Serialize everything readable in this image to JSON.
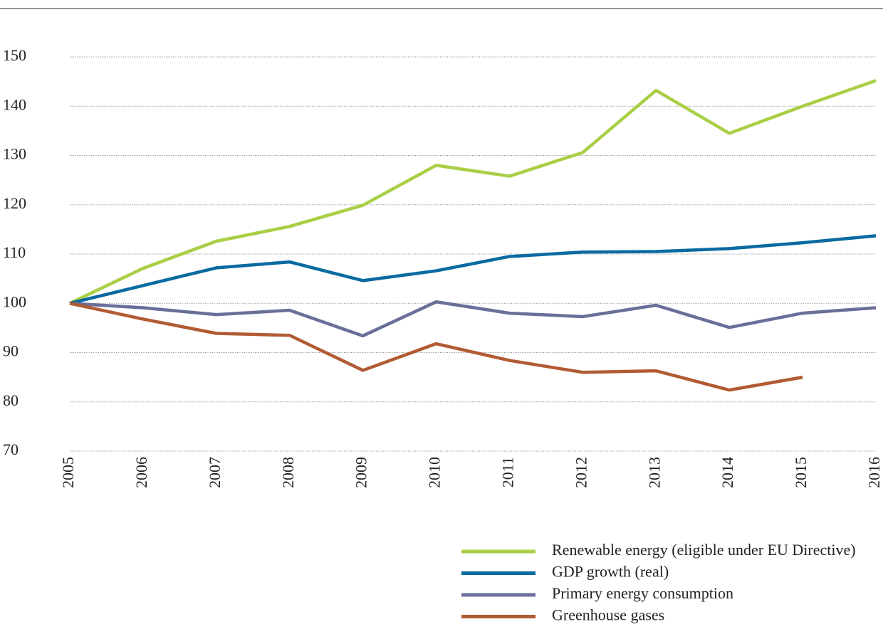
{
  "chart_data": {
    "type": "line",
    "x": [
      "2005",
      "2006",
      "2007",
      "2008",
      "2009",
      "2010",
      "2011",
      "2012",
      "2013",
      "2014",
      "2015",
      "2016"
    ],
    "series": [
      {
        "name": "Renewable energy (eligible under EU Directive)",
        "color": "#a8cf45",
        "values": [
          100,
          107.1,
          112.6,
          115.6,
          119.9,
          128.0,
          125.8,
          130.6,
          143.2,
          134.5,
          140.0,
          145.2
        ]
      },
      {
        "name": "GDP growth (real)",
        "color": "#0a6aa1",
        "values": [
          100,
          103.6,
          107.2,
          108.4,
          104.6,
          106.6,
          109.5,
          110.4,
          110.5,
          111.1,
          112.3,
          113.7
        ]
      },
      {
        "name": "Primary energy consumption",
        "color": "#6a6f99",
        "values": [
          100,
          99.1,
          97.7,
          98.6,
          93.4,
          100.3,
          98.0,
          97.3,
          99.6,
          95.1,
          98.0,
          99.1
        ]
      },
      {
        "name": "Greenhouse gases",
        "color": "#b15b34",
        "values": [
          100,
          96.8,
          93.9,
          93.5,
          86.4,
          91.8,
          88.4,
          86.0,
          86.3,
          82.4,
          85.0,
          null
        ]
      }
    ],
    "ylim": [
      70,
      150
    ],
    "yticks": [
      70,
      80,
      90,
      100,
      110,
      120,
      130,
      140,
      150
    ],
    "grid": true
  }
}
